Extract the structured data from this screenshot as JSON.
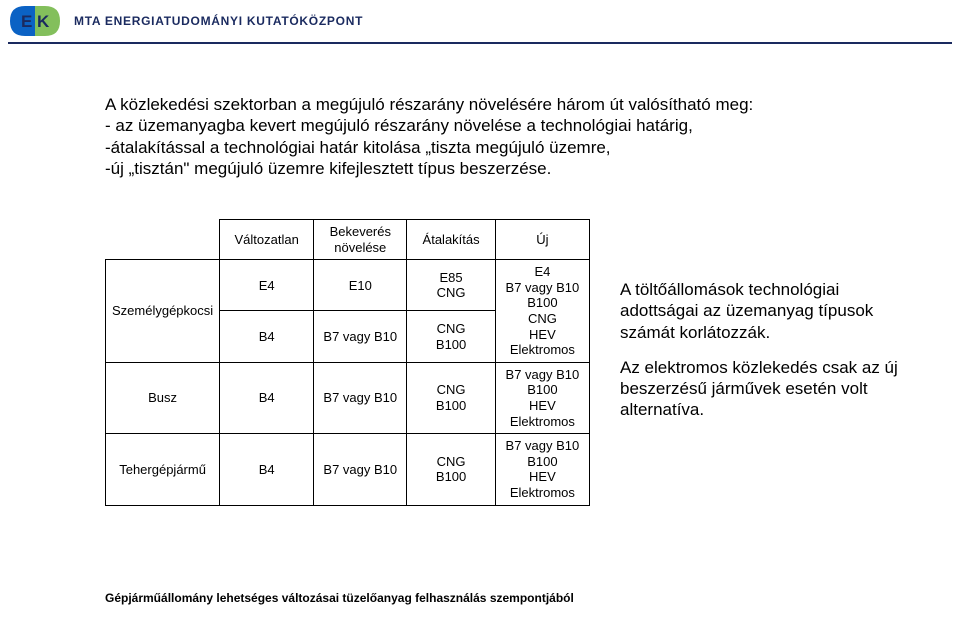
{
  "header": {
    "org": "MTA ENERGIATUDOMÁNYI KUTATÓKÖZPONT",
    "logo_letters": "EK",
    "logo_colors": {
      "left": "#0b62c4",
      "right": "#6db43f",
      "text": "#1a2a5f"
    },
    "rule_color": "#1a2a5f"
  },
  "body": {
    "intro": "A közlekedési szektorban a megújuló részarány növelésére három út valósítható meg:",
    "bullets": [
      "- az üzemanyagba kevert megújuló részarány növelése a technológiai határig,",
      "-átalakítással a technológiai határ kitolása „tiszta megújuló üzemre,",
      "-új „tisztán\" megújuló üzemre kifejlesztett típus beszerzése."
    ]
  },
  "table": {
    "columns": [
      "",
      "Változatlan",
      "Bekeverés\nnövelése",
      "Átalakítás",
      "Új"
    ],
    "rows": [
      {
        "label": "Személygépkocsi",
        "rowspan": 2,
        "c1": "E4",
        "c2": "E10",
        "c3": "E85\nCNG",
        "c4_rowspan": 2,
        "c4": "E4\nB7 vagy B10\nB100\nCNG\nHEV\nElektromos"
      },
      {
        "c1": "B4",
        "c2": "B7 vagy B10",
        "c3": "CNG\nB100"
      },
      {
        "label": "Busz",
        "c1": "B4",
        "c2": "B7 vagy B10",
        "c3": "CNG\nB100",
        "c4": "B7 vagy B10\nB100\nHEV\nElektromos"
      },
      {
        "label": "Tehergépjármű",
        "c1": "B4",
        "c2": "B7 vagy B10",
        "c3": "CNG\nB100",
        "c4": "B7 vagy B10\nB100\nHEV\nElektromos"
      }
    ]
  },
  "side": {
    "p1": "A töltőállomások technológiai adottságai az üzemanyag típusok számát korlátozzák.",
    "p2": "Az elektromos közlekedés csak az új beszerzésű járművek esetén volt alternatíva."
  },
  "footer": {
    "caption": "Gépjárműállomány lehetséges változásai tüzelőanyag felhasználás szempontjából"
  },
  "style": {
    "page_bg": "#ffffff",
    "text_color": "#000000",
    "body_fontsize": 17,
    "table_fontsize": 13,
    "footer_fontsize": 12
  }
}
